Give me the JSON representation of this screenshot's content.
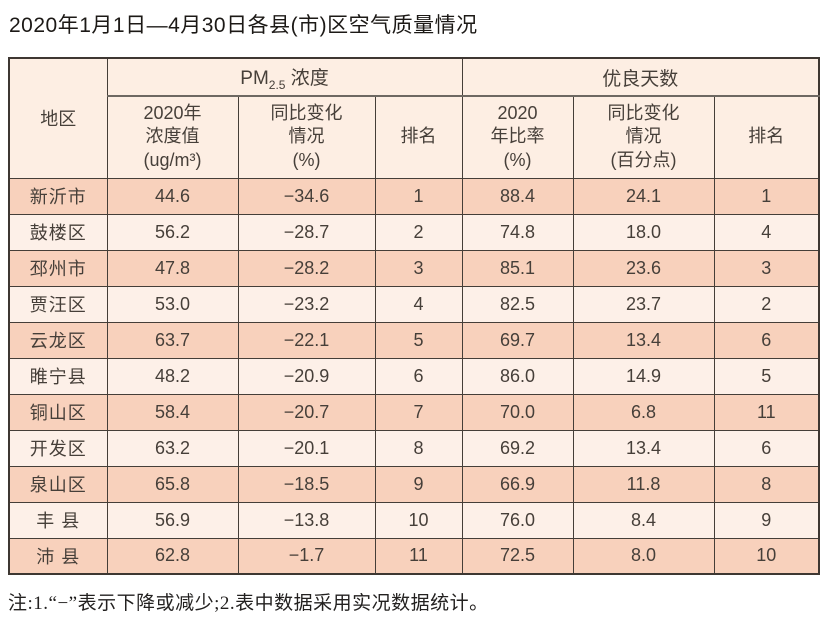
{
  "title": "2020年1月1日—4月30日各县(市)区空气质量情况",
  "table": {
    "region_header": "地区",
    "group1": {
      "prefix": "PM",
      "sub": "2.5",
      "suffix": " 浓度"
    },
    "group2": {
      "label": "优良天数"
    },
    "subheaders": {
      "pm_value": "2020年\n浓度值\n(ug/m³)",
      "pm_change": "同比变化\n情况\n(%)",
      "pm_rank": "排名",
      "good_ratio": "2020\n年比率\n(%)",
      "good_change": "同比变化\n情况\n(百分点)",
      "good_rank": "排名"
    },
    "rows": [
      [
        "新沂市",
        "44.6",
        "−34.6",
        "1",
        "88.4",
        "24.1",
        "1"
      ],
      [
        "鼓楼区",
        "56.2",
        "−28.7",
        "2",
        "74.8",
        "18.0",
        "4"
      ],
      [
        "邳州市",
        "47.8",
        "−28.2",
        "3",
        "85.1",
        "23.6",
        "3"
      ],
      [
        "贾汪区",
        "53.0",
        "−23.2",
        "4",
        "82.5",
        "23.7",
        "2"
      ],
      [
        "云龙区",
        "63.7",
        "−22.1",
        "5",
        "69.7",
        "13.4",
        "6"
      ],
      [
        "睢宁县",
        "48.2",
        "−20.9",
        "6",
        "86.0",
        "14.9",
        "5"
      ],
      [
        "铜山区",
        "58.4",
        "−20.7",
        "7",
        "70.0",
        "6.8",
        "11"
      ],
      [
        "开发区",
        "63.2",
        "−20.1",
        "8",
        "69.2",
        "13.4",
        "6"
      ],
      [
        "泉山区",
        "65.8",
        "−18.5",
        "9",
        "66.9",
        "11.8",
        "8"
      ],
      [
        "丰 县",
        "56.9",
        "−13.8",
        "10",
        "76.0",
        "8.4",
        "9"
      ],
      [
        "沛 县",
        "62.8",
        "−1.7",
        "11",
        "72.5",
        "8.0",
        "10"
      ]
    ]
  },
  "note": "注:1.“−”表示下降或减少;2.表中数据采用实况数据统计。",
  "colors": {
    "row_dark": "#f8d1bc",
    "row_light": "#fdf0e8",
    "header_bg": "#fdeee3",
    "border": "#453e38",
    "outer_border": "#3e3732"
  },
  "chart_data": {
    "type": "table",
    "title": "2020年1月1日—4月30日各县(市)区空气质量情况",
    "columns": [
      "地区",
      "PM2.5浓度 2020年浓度值(ug/m³)",
      "PM2.5浓度 同比变化情况(%)",
      "PM2.5浓度 排名",
      "优良天数 2020年比率(%)",
      "优良天数 同比变化情况(百分点)",
      "优良天数 排名"
    ],
    "rows": [
      [
        "新沂市",
        44.6,
        -34.6,
        1,
        88.4,
        24.1,
        1
      ],
      [
        "鼓楼区",
        56.2,
        -28.7,
        2,
        74.8,
        18.0,
        4
      ],
      [
        "邳州市",
        47.8,
        -28.2,
        3,
        85.1,
        23.6,
        3
      ],
      [
        "贾汪区",
        53.0,
        -23.2,
        4,
        82.5,
        23.7,
        2
      ],
      [
        "云龙区",
        63.7,
        -22.1,
        5,
        69.7,
        13.4,
        6
      ],
      [
        "睢宁县",
        48.2,
        -20.9,
        6,
        86.0,
        14.9,
        5
      ],
      [
        "铜山区",
        58.4,
        -20.7,
        7,
        70.0,
        6.8,
        11
      ],
      [
        "开发区",
        63.2,
        -20.1,
        8,
        69.2,
        13.4,
        6
      ],
      [
        "泉山区",
        65.8,
        -18.5,
        9,
        66.9,
        11.8,
        8
      ],
      [
        "丰县",
        56.9,
        -13.8,
        10,
        76.0,
        8.4,
        9
      ],
      [
        "沛县",
        62.8,
        -1.7,
        11,
        72.5,
        8.0,
        10
      ]
    ],
    "footnote": "注:1.“−”表示下降或减少;2.表中数据采用实况数据统计。"
  }
}
